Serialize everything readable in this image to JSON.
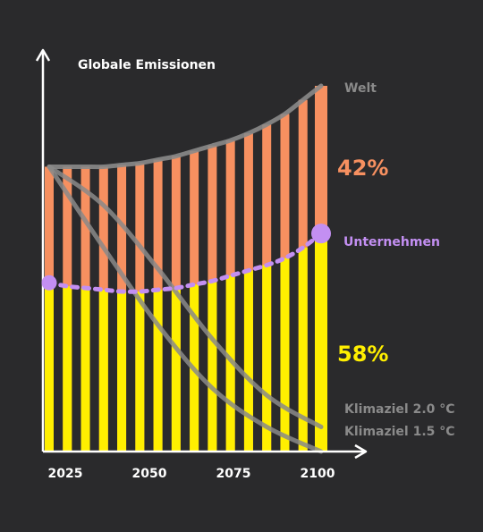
{
  "chart_data": {
    "type": "bar",
    "title": "Globale Emissionen",
    "x_ticks": [
      "2025",
      "2050",
      "2075",
      "2100"
    ],
    "x_range": [
      2025,
      2100
    ],
    "categories": [
      2025,
      2030,
      2035,
      2040,
      2045,
      2050,
      2055,
      2060,
      2065,
      2070,
      2075,
      2080,
      2085,
      2090,
      2095,
      2100
    ],
    "series": [
      {
        "name": "Unternehmen",
        "color": "#ffef00",
        "values": [
          48,
          47,
          46.5,
          46,
          45.5,
          45.5,
          46,
          46.5,
          47.5,
          48.5,
          50,
          51.5,
          53,
          55,
          58,
          62
        ]
      },
      {
        "name": "Welt",
        "color": "#f79060",
        "values": [
          81,
          81,
          81,
          81,
          81.5,
          82,
          83,
          84,
          85.5,
          87,
          88.5,
          90.5,
          93,
          96,
          100,
          104
        ]
      }
    ],
    "pathways": [
      {
        "name": "Klimaziel 2.0 °C",
        "color": "#8a8a8a",
        "x": [
          2025,
          2040,
          2055,
          2070,
          2085,
          2100
        ],
        "values": [
          81,
          70,
          52,
          32,
          16,
          7
        ]
      },
      {
        "name": "Klimaziel 1.5 °C",
        "color": "#8a8a8a",
        "x": [
          2025,
          2040,
          2055,
          2070,
          2085,
          2100
        ],
        "values": [
          81,
          58,
          36,
          18,
          7,
          0
        ]
      }
    ],
    "annotations": {
      "welt_label": "Welt",
      "unternehmen_label": "Unternehmen",
      "share_welt": "42%",
      "share_unternehmen": "58%",
      "klimaziel_20": "Klimaziel 2.0 °C",
      "klimaziel_15": "Klimaziel 1.5 °C"
    },
    "colors": {
      "background": "#2a2a2c",
      "welt": "#f79060",
      "unternehmen": "#ffef00",
      "unternehmen_marker": "#c38ff2",
      "pathway": "#8a8a8a",
      "axis": "#ffffff"
    },
    "grid": false
  }
}
